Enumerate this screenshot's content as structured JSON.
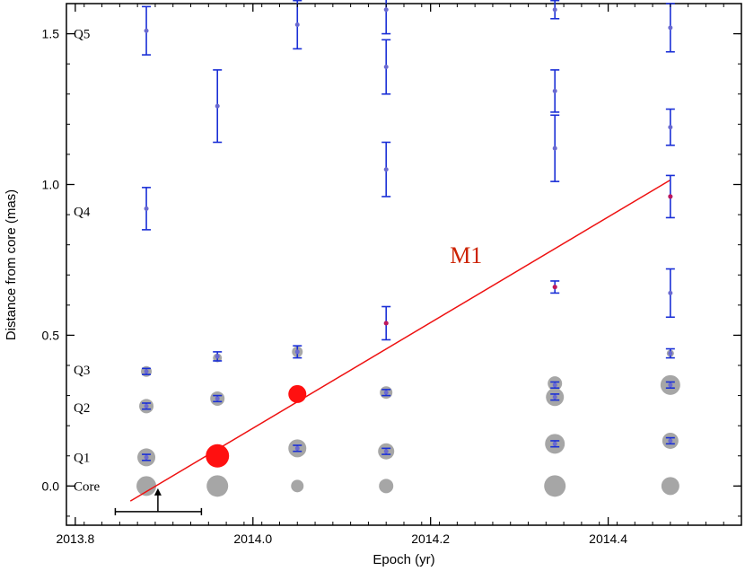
{
  "chart_data": {
    "type": "scatter",
    "xlabel": "Epoch (yr)",
    "ylabel": "Distance from core (mas)",
    "xlim": [
      2013.79,
      2014.55
    ],
    "ylim": [
      -0.13,
      1.6
    ],
    "x_ticks": [
      {
        "value": 2013.8,
        "label": "2013.8"
      },
      {
        "value": 2014.0,
        "label": "2014.0"
      },
      {
        "value": 2014.2,
        "label": "2014.2"
      },
      {
        "value": 2014.4,
        "label": "2014.4"
      }
    ],
    "y_ticks": [
      {
        "value": 0.0,
        "label": "0.0"
      },
      {
        "value": 0.5,
        "label": "0.5"
      },
      {
        "value": 1.0,
        "label": "1.0"
      },
      {
        "value": 1.5,
        "label": "1.5"
      }
    ],
    "component_labels": [
      {
        "text": "Q5",
        "y": 1.5
      },
      {
        "text": "Q4",
        "y": 0.91
      },
      {
        "text": "Q3",
        "y": 0.385
      },
      {
        "text": "Q2",
        "y": 0.26
      },
      {
        "text": "Q1",
        "y": 0.095
      },
      {
        "text": "Core",
        "y": 0.0
      }
    ],
    "gray_blobs": [
      {
        "x": 2013.88,
        "y": 0.0,
        "size": 11
      },
      {
        "x": 2013.88,
        "y": 0.095,
        "size": 10
      },
      {
        "x": 2013.88,
        "y": 0.265,
        "size": 8
      },
      {
        "x": 2013.88,
        "y": 0.38,
        "size": 6
      },
      {
        "x": 2013.96,
        "y": 0.0,
        "size": 12
      },
      {
        "x": 2013.96,
        "y": 0.29,
        "size": 8
      },
      {
        "x": 2013.96,
        "y": 0.425,
        "size": 5
      },
      {
        "x": 2014.05,
        "y": 0.0,
        "size": 7
      },
      {
        "x": 2014.05,
        "y": 0.125,
        "size": 10
      },
      {
        "x": 2014.05,
        "y": 0.445,
        "size": 6
      },
      {
        "x": 2014.15,
        "y": 0.0,
        "size": 8
      },
      {
        "x": 2014.15,
        "y": 0.115,
        "size": 9
      },
      {
        "x": 2014.15,
        "y": 0.31,
        "size": 7
      },
      {
        "x": 2014.34,
        "y": 0.0,
        "size": 12
      },
      {
        "x": 2014.34,
        "y": 0.14,
        "size": 11
      },
      {
        "x": 2014.34,
        "y": 0.295,
        "size": 10
      },
      {
        "x": 2014.34,
        "y": 0.34,
        "size": 8
      },
      {
        "x": 2014.47,
        "y": 0.0,
        "size": 10
      },
      {
        "x": 2014.47,
        "y": 0.15,
        "size": 9
      },
      {
        "x": 2014.47,
        "y": 0.335,
        "size": 11
      },
      {
        "x": 2014.47,
        "y": 0.44,
        "size": 4
      }
    ],
    "errorbars": [
      {
        "x": 2013.88,
        "y": 0.095,
        "err": 0.01
      },
      {
        "x": 2013.88,
        "y": 0.265,
        "err": 0.01
      },
      {
        "x": 2013.88,
        "y": 0.38,
        "err": 0.01
      },
      {
        "x": 2013.88,
        "y": 0.92,
        "err": 0.07
      },
      {
        "x": 2013.88,
        "y": 1.51,
        "err": 0.08
      },
      {
        "x": 2013.96,
        "y": 0.1,
        "err": 0.01
      },
      {
        "x": 2013.96,
        "y": 0.29,
        "err": 0.01
      },
      {
        "x": 2013.96,
        "y": 0.43,
        "err": 0.015
      },
      {
        "x": 2013.96,
        "y": 1.26,
        "err": 0.12
      },
      {
        "x": 2014.05,
        "y": 0.125,
        "err": 0.01
      },
      {
        "x": 2014.05,
        "y": 0.305,
        "err": 0.01
      },
      {
        "x": 2014.05,
        "y": 0.445,
        "err": 0.02
      },
      {
        "x": 2014.05,
        "y": 1.53,
        "err": 0.08
      },
      {
        "x": 2014.15,
        "y": 0.115,
        "err": 0.01
      },
      {
        "x": 2014.15,
        "y": 0.31,
        "err": 0.01
      },
      {
        "x": 2014.15,
        "y": 0.54,
        "err": 0.055
      },
      {
        "x": 2014.15,
        "y": 1.05,
        "err": 0.09
      },
      {
        "x": 2014.15,
        "y": 1.39,
        "err": 0.09
      },
      {
        "x": 2014.15,
        "y": 1.58,
        "err": 0.08
      },
      {
        "x": 2014.34,
        "y": 0.14,
        "err": 0.01
      },
      {
        "x": 2014.34,
        "y": 0.295,
        "err": 0.01
      },
      {
        "x": 2014.34,
        "y": 0.335,
        "err": 0.01
      },
      {
        "x": 2014.34,
        "y": 0.66,
        "err": 0.02
      },
      {
        "x": 2014.34,
        "y": 1.12,
        "err": 0.11
      },
      {
        "x": 2014.34,
        "y": 1.31,
        "err": 0.07
      },
      {
        "x": 2014.34,
        "y": 1.58,
        "err": 0.03
      },
      {
        "x": 2014.47,
        "y": 0.15,
        "err": 0.01
      },
      {
        "x": 2014.47,
        "y": 0.335,
        "err": 0.01
      },
      {
        "x": 2014.47,
        "y": 0.44,
        "err": 0.015
      },
      {
        "x": 2014.47,
        "y": 0.64,
        "err": 0.08
      },
      {
        "x": 2014.47,
        "y": 0.96,
        "err": 0.07
      },
      {
        "x": 2014.47,
        "y": 1.19,
        "err": 0.06
      },
      {
        "x": 2014.47,
        "y": 1.52,
        "err": 0.08
      }
    ],
    "m1_points": [
      {
        "x": 2013.96,
        "y": 0.1,
        "size": 13
      },
      {
        "x": 2014.05,
        "y": 0.305,
        "size": 10
      },
      {
        "x": 2014.15,
        "y": 0.54,
        "size": 2.5
      },
      {
        "x": 2014.34,
        "y": 0.66,
        "size": 2.5
      },
      {
        "x": 2014.47,
        "y": 0.96,
        "size": 2.5
      }
    ],
    "m1_fit": {
      "label": "M1",
      "x1": 2013.862,
      "y1": -0.05,
      "x2": 2014.47,
      "y2": 1.015,
      "label_x": 2014.24,
      "label_y": 0.74
    },
    "ejection_marker": {
      "x": 2013.893,
      "x_min": 2013.845,
      "x_max": 2013.942,
      "y": -0.085
    },
    "colors": {
      "gray_blob": "#a6a6a6",
      "errorbar": "#1a2fd6",
      "point": "#6a6ad0",
      "m1": "#ff1010",
      "m1_small": "#c0185a",
      "fit_line": "#ee1111",
      "m1_text": "#cc2200"
    }
  }
}
